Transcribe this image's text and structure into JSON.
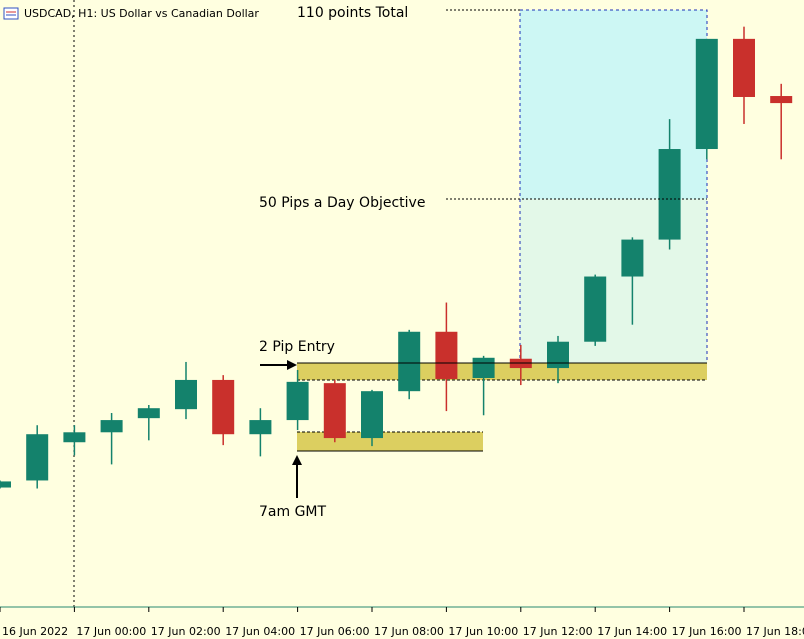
{
  "chart_data": {
    "type": "candlestick",
    "title": "USDCAD, H1:  US Dollar vs Canadian Dollar",
    "categories": [
      "16 Jun 2022",
      null,
      "17 Jun 00:00",
      null,
      "17 Jun 02:00",
      null,
      "17 Jun 04:00",
      null,
      "17 Jun 06:00",
      null,
      "17 Jun 08:00",
      null,
      "17 Jun 10:00",
      null,
      "17 Jun 12:00",
      null,
      "17 Jun 14:00",
      null,
      "17 Jun 16:00",
      null,
      "17 Jun 18:00",
      null
    ],
    "open": [
      -38.8,
      -36.6,
      -24.7,
      -21.6,
      -17.2,
      -14.4,
      -5.3,
      -22.2,
      -17.8,
      -6.3,
      -23.4,
      -8.8,
      9.7,
      -4.7,
      1.3,
      -1.6,
      6.6,
      26.9,
      38.4,
      66.6,
      100.9,
      83.1
    ],
    "close": [
      -36.9,
      -22.2,
      -21.6,
      -17.8,
      -14.1,
      -5.3,
      -22.2,
      -17.8,
      -5.9,
      -23.4,
      -8.8,
      9.7,
      -5.0,
      1.6,
      -1.6,
      6.6,
      26.9,
      38.4,
      66.6,
      100.9,
      82.8,
      80.9
    ],
    "high": [
      -36.6,
      -19.4,
      -19.4,
      -15.6,
      -13.1,
      0.3,
      -3.8,
      -14.1,
      -2.2,
      -5.3,
      -8.4,
      10.3,
      18.8,
      2.2,
      5.6,
      8.4,
      27.5,
      39.1,
      75.9,
      100.9,
      104.7,
      86.9
    ],
    "low": [
      -39.1,
      -39.1,
      -28.8,
      -31.6,
      -24.1,
      -17.5,
      -25.6,
      -29.1,
      -20.9,
      -24.7,
      -25.9,
      -11.3,
      -15.0,
      -16.3,
      -6.9,
      -6.3,
      5.3,
      11.9,
      35.3,
      63.4,
      74.4,
      63.4
    ],
    "up_color": "#14826c",
    "down_color": "#c9302c",
    "ylim": [
      -76,
      113
    ],
    "annotations": [
      "110 points Total",
      "50 Pips a Day Objective",
      "2 Pip Entry",
      "7am GMT"
    ]
  }
}
